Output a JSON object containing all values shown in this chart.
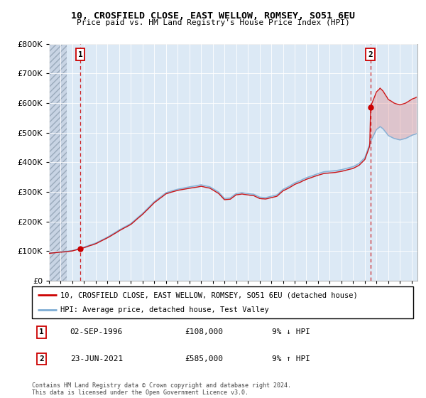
{
  "title_line1": "10, CROSFIELD CLOSE, EAST WELLOW, ROMSEY, SO51 6EU",
  "title_line2": "Price paid vs. HM Land Registry's House Price Index (HPI)",
  "legend_label1": "10, CROSFIELD CLOSE, EAST WELLOW, ROMSEY, SO51 6EU (detached house)",
  "legend_label2": "HPI: Average price, detached house, Test Valley",
  "annotation1_label": "1",
  "annotation1_date": "02-SEP-1996",
  "annotation1_price": "£108,000",
  "annotation1_hpi": "9% ↓ HPI",
  "annotation2_label": "2",
  "annotation2_date": "23-JUN-2021",
  "annotation2_price": "£585,000",
  "annotation2_hpi": "9% ↑ HPI",
  "footer": "Contains HM Land Registry data © Crown copyright and database right 2024.\nThis data is licensed under the Open Government Licence v3.0.",
  "sale1_year": 1996.67,
  "sale1_value": 108000,
  "sale2_year": 2021.47,
  "sale2_value": 585000,
  "hpi_color": "#7eadd4",
  "price_color": "#cc0000",
  "dashed_color": "#cc0000",
  "ylim_min": 0,
  "ylim_max": 800000,
  "xlim_min": 1994.0,
  "xlim_max": 2025.5,
  "plot_bg_color": "#dce9f5",
  "hatch_color": "#c0c8d8"
}
